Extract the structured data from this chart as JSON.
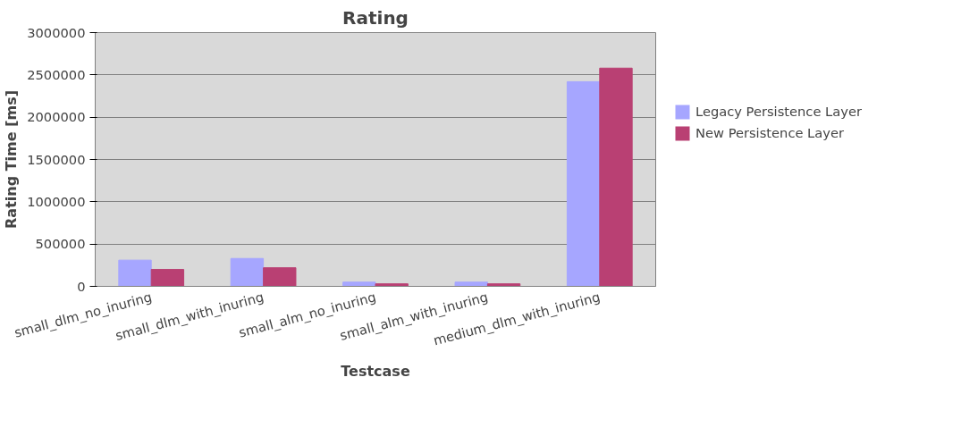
{
  "chart_data": {
    "type": "bar",
    "title": "Rating",
    "xlabel": "Testcase",
    "ylabel": "Rating Time [ms]",
    "categories": [
      "small_dlm_no_inuring",
      "small_dlm_with_inuring",
      "small_alm_no_inuring",
      "small_alm_with_inuring",
      "medium_dlm_with_inuring"
    ],
    "series": [
      {
        "name": "Legacy Persistence Layer",
        "color": "#a6a6ff",
        "values": [
          310000,
          330000,
          50000,
          50000,
          2420000
        ]
      },
      {
        "name": "New Persistence Layer",
        "color": "#b94073",
        "values": [
          200000,
          220000,
          30000,
          30000,
          2580000
        ]
      }
    ],
    "ylim": [
      0,
      3000000
    ],
    "yticks": [
      0,
      500000,
      1000000,
      1500000,
      2000000,
      2500000,
      3000000
    ],
    "grid": "y",
    "legend": "right"
  }
}
